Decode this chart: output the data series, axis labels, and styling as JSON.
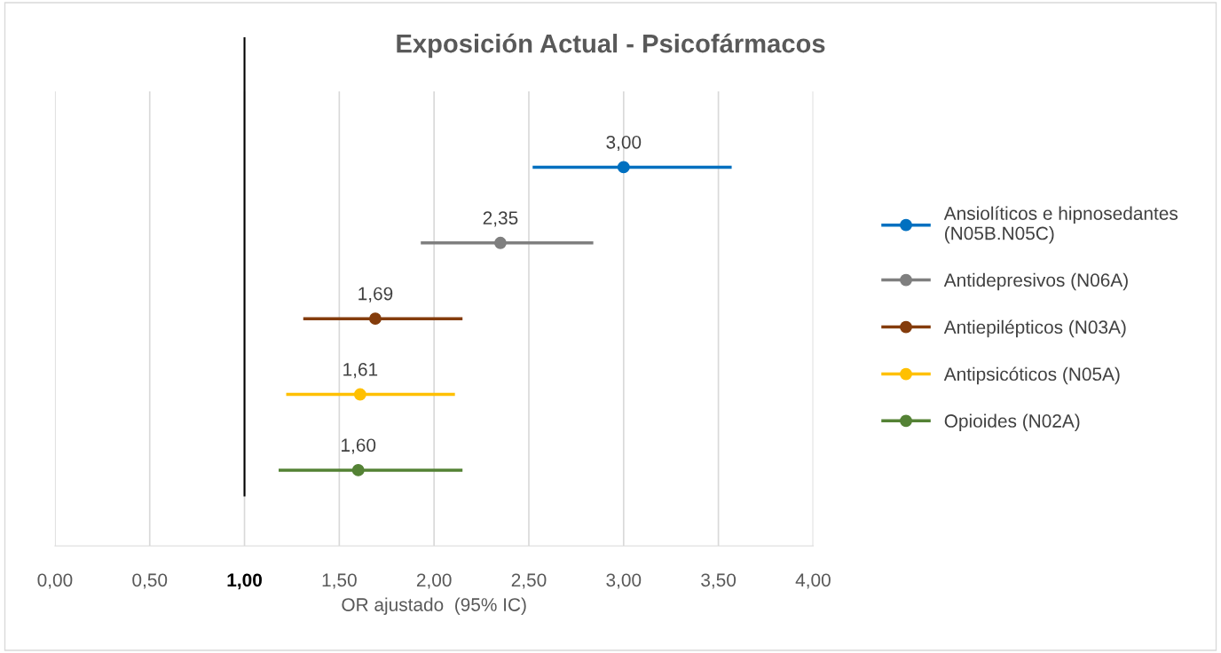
{
  "chart_data": {
    "type": "scatter",
    "orientation": "horizontal",
    "title": "Exposición Actual - Psicofármacos",
    "xlabel": "OR ajustado  (95% IC)",
    "categories": [
      null,
      null,
      null,
      null,
      null
    ],
    "series": [
      {
        "name": "Ansiolíticos e hipnosedantes\n(N05B.N05C)",
        "color": "#0070c0",
        "values": [
          3.0,
          null,
          null,
          null,
          null
        ],
        "errors": [
          [
            2.52,
            3.57
          ],
          null,
          null,
          null,
          null
        ],
        "value_labels": [
          "3,00",
          null,
          null,
          null,
          null
        ]
      },
      {
        "name": "Antidepresivos (N06A)",
        "color": "#7f7f7f",
        "values": [
          null,
          2.35,
          null,
          null,
          null
        ],
        "errors": [
          null,
          [
            1.93,
            2.84
          ],
          null,
          null,
          null
        ],
        "value_labels": [
          null,
          "2,35",
          null,
          null,
          null
        ]
      },
      {
        "name": "Antiepilépticos (N03A)",
        "color": "#843c0c",
        "values": [
          null,
          null,
          1.69,
          null,
          null
        ],
        "errors": [
          null,
          null,
          [
            1.31,
            2.15
          ],
          null,
          null
        ],
        "value_labels": [
          null,
          null,
          "1,69",
          null,
          null
        ]
      },
      {
        "name": "Antipsicóticos (N05A)",
        "color": "#ffc000",
        "values": [
          null,
          null,
          null,
          1.61,
          null
        ],
        "errors": [
          null,
          null,
          null,
          [
            1.22,
            2.11
          ],
          null
        ],
        "value_labels": [
          null,
          null,
          null,
          "1,61",
          null
        ]
      },
      {
        "name": "Opioides (N02A)",
        "color": "#548235",
        "values": [
          null,
          null,
          null,
          null,
          1.6
        ],
        "errors": [
          null,
          null,
          null,
          null,
          [
            1.18,
            2.15
          ]
        ],
        "value_labels": [
          null,
          null,
          null,
          null,
          "1,60"
        ]
      }
    ],
    "xlim": [
      0,
      4
    ],
    "xticks": [
      {
        "value": 0,
        "label": "0,00"
      },
      {
        "value": 0.5,
        "label": "0,50"
      },
      {
        "value": 1,
        "label": "1,00"
      },
      {
        "value": 1.5,
        "label": "1,50"
      },
      {
        "value": 2,
        "label": "2,00"
      },
      {
        "value": 2.5,
        "label": "2,50"
      },
      {
        "value": 3,
        "label": "3,00"
      },
      {
        "value": 3.5,
        "label": "3,50"
      },
      {
        "value": 4,
        "label": "4,00"
      }
    ],
    "ref_lines": [
      {
        "axis": "x",
        "value": 1,
        "color": "#000000"
      }
    ],
    "grid": "x",
    "legend": "right",
    "marker": "circle",
    "tick_labels": "x"
  }
}
